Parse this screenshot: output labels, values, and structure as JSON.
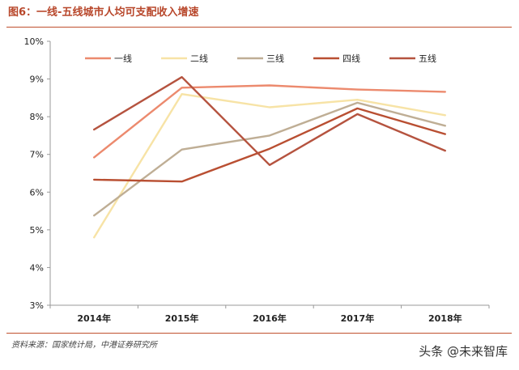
{
  "header": {
    "title": "图6：一线-五线城市人均可支配收入增速"
  },
  "footer": {
    "source": "资料来源：国家统计局，中港证券研究所",
    "watermark": "头条 @未来智库"
  },
  "chart_data": {
    "type": "line",
    "title": "图6：一线-五线城市人均可支配收入增速",
    "xlabel": "",
    "ylabel": "",
    "categories": [
      "2014年",
      "2015年",
      "2016年",
      "2017年",
      "2018年"
    ],
    "ylim": [
      3,
      10
    ],
    "yticks": [
      3,
      4,
      5,
      6,
      7,
      8,
      9,
      10
    ],
    "ytick_labels": [
      "3%",
      "4%",
      "5%",
      "6%",
      "7%",
      "8%",
      "9%",
      "10%"
    ],
    "grid": false,
    "legend": "top",
    "series": [
      {
        "name": "一线",
        "color": "#ec8a6e",
        "values": [
          6.92,
          8.77,
          8.83,
          8.72,
          8.66
        ]
      },
      {
        "name": "二线",
        "color": "#f7e3a6",
        "values": [
          4.8,
          8.6,
          8.25,
          8.45,
          8.04
        ]
      },
      {
        "name": "三线",
        "color": "#bfae95",
        "values": [
          5.38,
          7.13,
          7.5,
          8.37,
          7.76
        ]
      },
      {
        "name": "四线",
        "color": "#b94f32",
        "values": [
          6.33,
          6.28,
          7.15,
          8.22,
          7.54
        ]
      },
      {
        "name": "五线",
        "color": "#b5533f",
        "values": [
          7.66,
          9.05,
          6.72,
          8.07,
          7.1
        ]
      }
    ]
  }
}
